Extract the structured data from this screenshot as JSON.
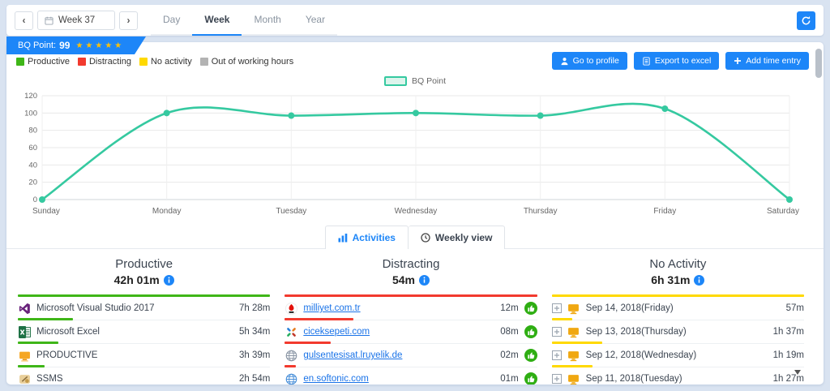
{
  "colors": {
    "accent_blue": "#1d86f8",
    "productive_green": "#3fb618",
    "distracting_red": "#f23a2e",
    "no_activity_yellow": "#ffd900",
    "out_of_hours_gray": "#b3b3b3",
    "chart_line_teal": "#35c9a0"
  },
  "topbar": {
    "prev": "‹",
    "next": "›",
    "week_value": "Week 37",
    "range_tabs": [
      "Day",
      "Week",
      "Month",
      "Year"
    ],
    "active_tab": "Week"
  },
  "banner": {
    "label": "BQ Point:",
    "value": "99",
    "stars": "★★★★★"
  },
  "legend": {
    "productive": "Productive",
    "distracting": "Distracting",
    "no_activity": "No activity",
    "out_of_hours": "Out of working hours"
  },
  "actions": {
    "go_to_profile": "Go to profile",
    "export_to_excel": "Export to excel",
    "add_time_entry": "Add time entry"
  },
  "chart_data": {
    "type": "line",
    "legend_label": "BQ Point",
    "categories": [
      "Sunday",
      "Monday",
      "Tuesday",
      "Wednesday",
      "Thursday",
      "Friday",
      "Saturday"
    ],
    "values": [
      0,
      100,
      97,
      100,
      97,
      105,
      0
    ],
    "ylim": [
      0,
      120
    ],
    "ytick_step": 20,
    "grid": true,
    "legend_position": "top-center",
    "line_color": "#35c9a0"
  },
  "activity_tabs": {
    "activities": "Activities",
    "weekly_view": "Weekly view"
  },
  "columns": {
    "productive": {
      "title": "Productive",
      "total": "42h 01m",
      "color": "#3fb618",
      "items": [
        {
          "name": "Microsoft Visual Studio 2017",
          "time": "7h 28m",
          "bar": 68,
          "icon": "visual-studio"
        },
        {
          "name": "Microsoft Excel",
          "time": "5h 34m",
          "bar": 50,
          "icon": "excel"
        },
        {
          "name": "PRODUCTIVE",
          "time": "3h 39m",
          "bar": 33,
          "icon": "productive-app"
        },
        {
          "name": "SSMS",
          "time": "2h 54m",
          "bar": 26,
          "icon": "ssms"
        }
      ]
    },
    "distracting": {
      "title": "Distracting",
      "total": "54m",
      "color": "#f23a2e",
      "items": [
        {
          "name": "milliyet.com.tr",
          "time": "12m",
          "bar": 85,
          "icon": "milliyet-favicon"
        },
        {
          "name": "ciceksepeti.com",
          "time": "08m",
          "bar": 57,
          "icon": "ciceksepeti-favicon"
        },
        {
          "name": "gulsentesisat.lruyelik.de",
          "time": "02m",
          "bar": 14,
          "icon": "globe"
        },
        {
          "name": "en.softonic.com",
          "time": "01m",
          "bar": 8,
          "icon": "globe"
        }
      ]
    },
    "no_activity": {
      "title": "No Activity",
      "total": "6h 31m",
      "color": "#ffd900",
      "items": [
        {
          "name": "Sep 14, 2018(Friday)",
          "time": "57m",
          "bar": 25
        },
        {
          "name": "Sep 13, 2018(Thursday)",
          "time": "1h 37m",
          "bar": 62
        },
        {
          "name": "Sep 12, 2018(Wednesday)",
          "time": "1h 19m",
          "bar": 50
        },
        {
          "name": "Sep 11, 2018(Tuesday)",
          "time": "1h 27m",
          "bar": 55
        }
      ]
    }
  }
}
